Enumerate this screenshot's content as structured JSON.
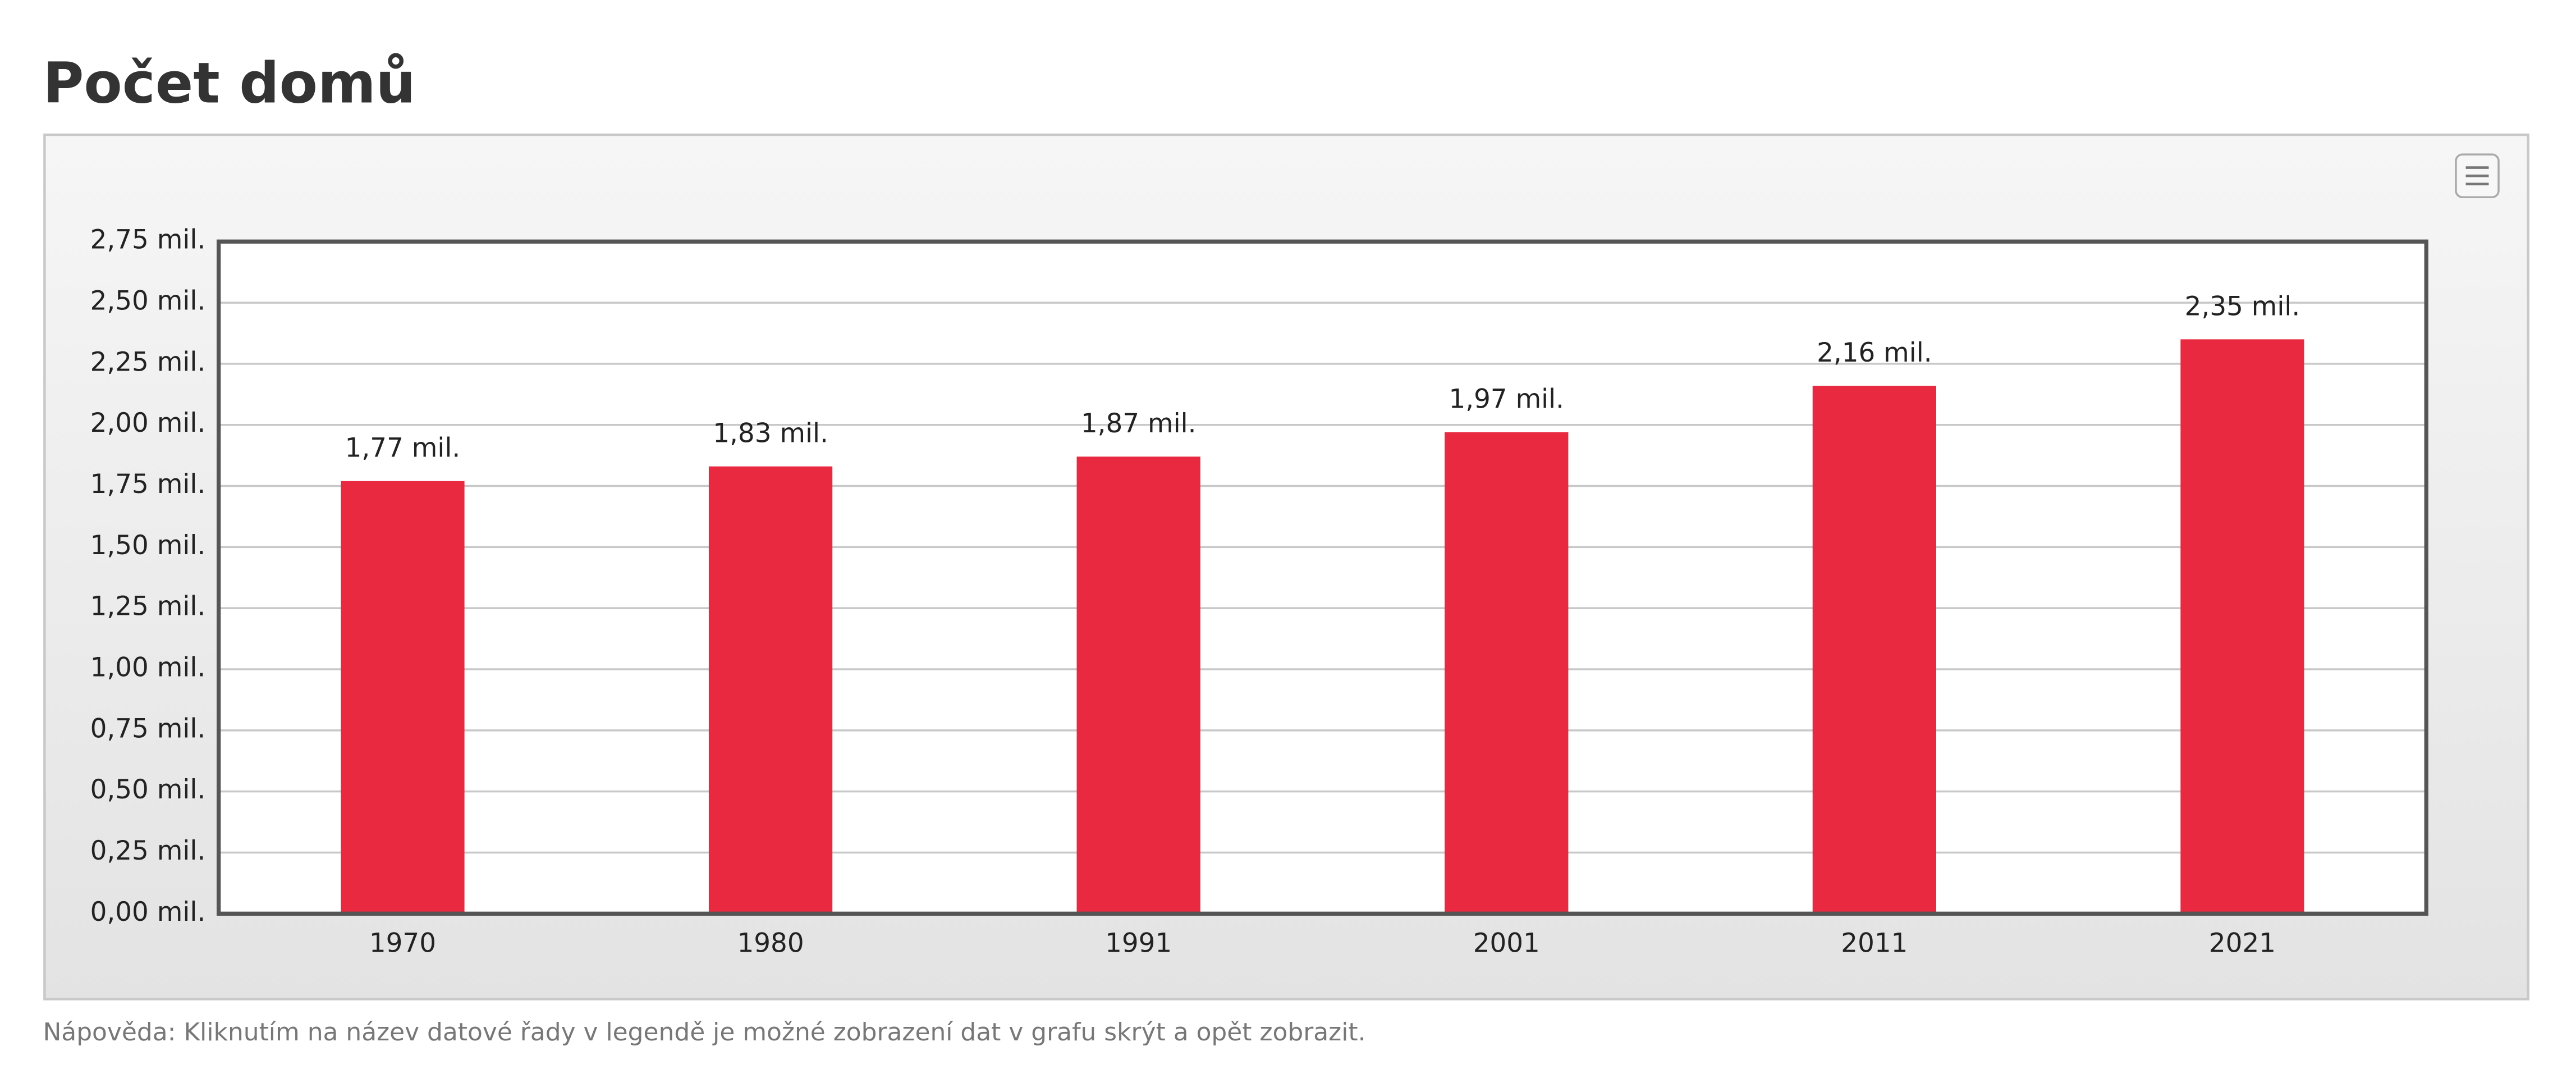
{
  "chart_data": {
    "type": "bar",
    "title": "Počet domů",
    "categories": [
      "1970",
      "1980",
      "1991",
      "2001",
      "2011",
      "2021"
    ],
    "values": [
      1770000,
      1830000,
      1870000,
      1970000,
      2160000,
      2350000
    ],
    "value_labels": [
      "1,77 mil.",
      "1,83 mil.",
      "1,87 mil.",
      "1,97 mil.",
      "2,16 mil.",
      "2,35 mil."
    ],
    "color": "#e8293f",
    "ylim": [
      0,
      2750000
    ],
    "yticks": [
      {
        "value": 0,
        "label": "0,00 mil."
      },
      {
        "value": 250000,
        "label": "0,25 mil."
      },
      {
        "value": 500000,
        "label": "0,50 mil."
      },
      {
        "value": 750000,
        "label": "0,75 mil."
      },
      {
        "value": 1000000,
        "label": "1,00 mil."
      },
      {
        "value": 1250000,
        "label": "1,25 mil."
      },
      {
        "value": 1500000,
        "label": "1,50 mil."
      },
      {
        "value": 1750000,
        "label": "1,75 mil."
      },
      {
        "value": 2000000,
        "label": "2,00 mil."
      },
      {
        "value": 2250000,
        "label": "2,25 mil."
      },
      {
        "value": 2500000,
        "label": "2,50 mil."
      },
      {
        "value": 2750000,
        "label": "2,75 mil."
      }
    ],
    "grid": true,
    "note": "Nápověda: Kliknutím na název datové řady v legendě je možné zobrazení dat v grafu skrýt a opět zobrazit."
  }
}
